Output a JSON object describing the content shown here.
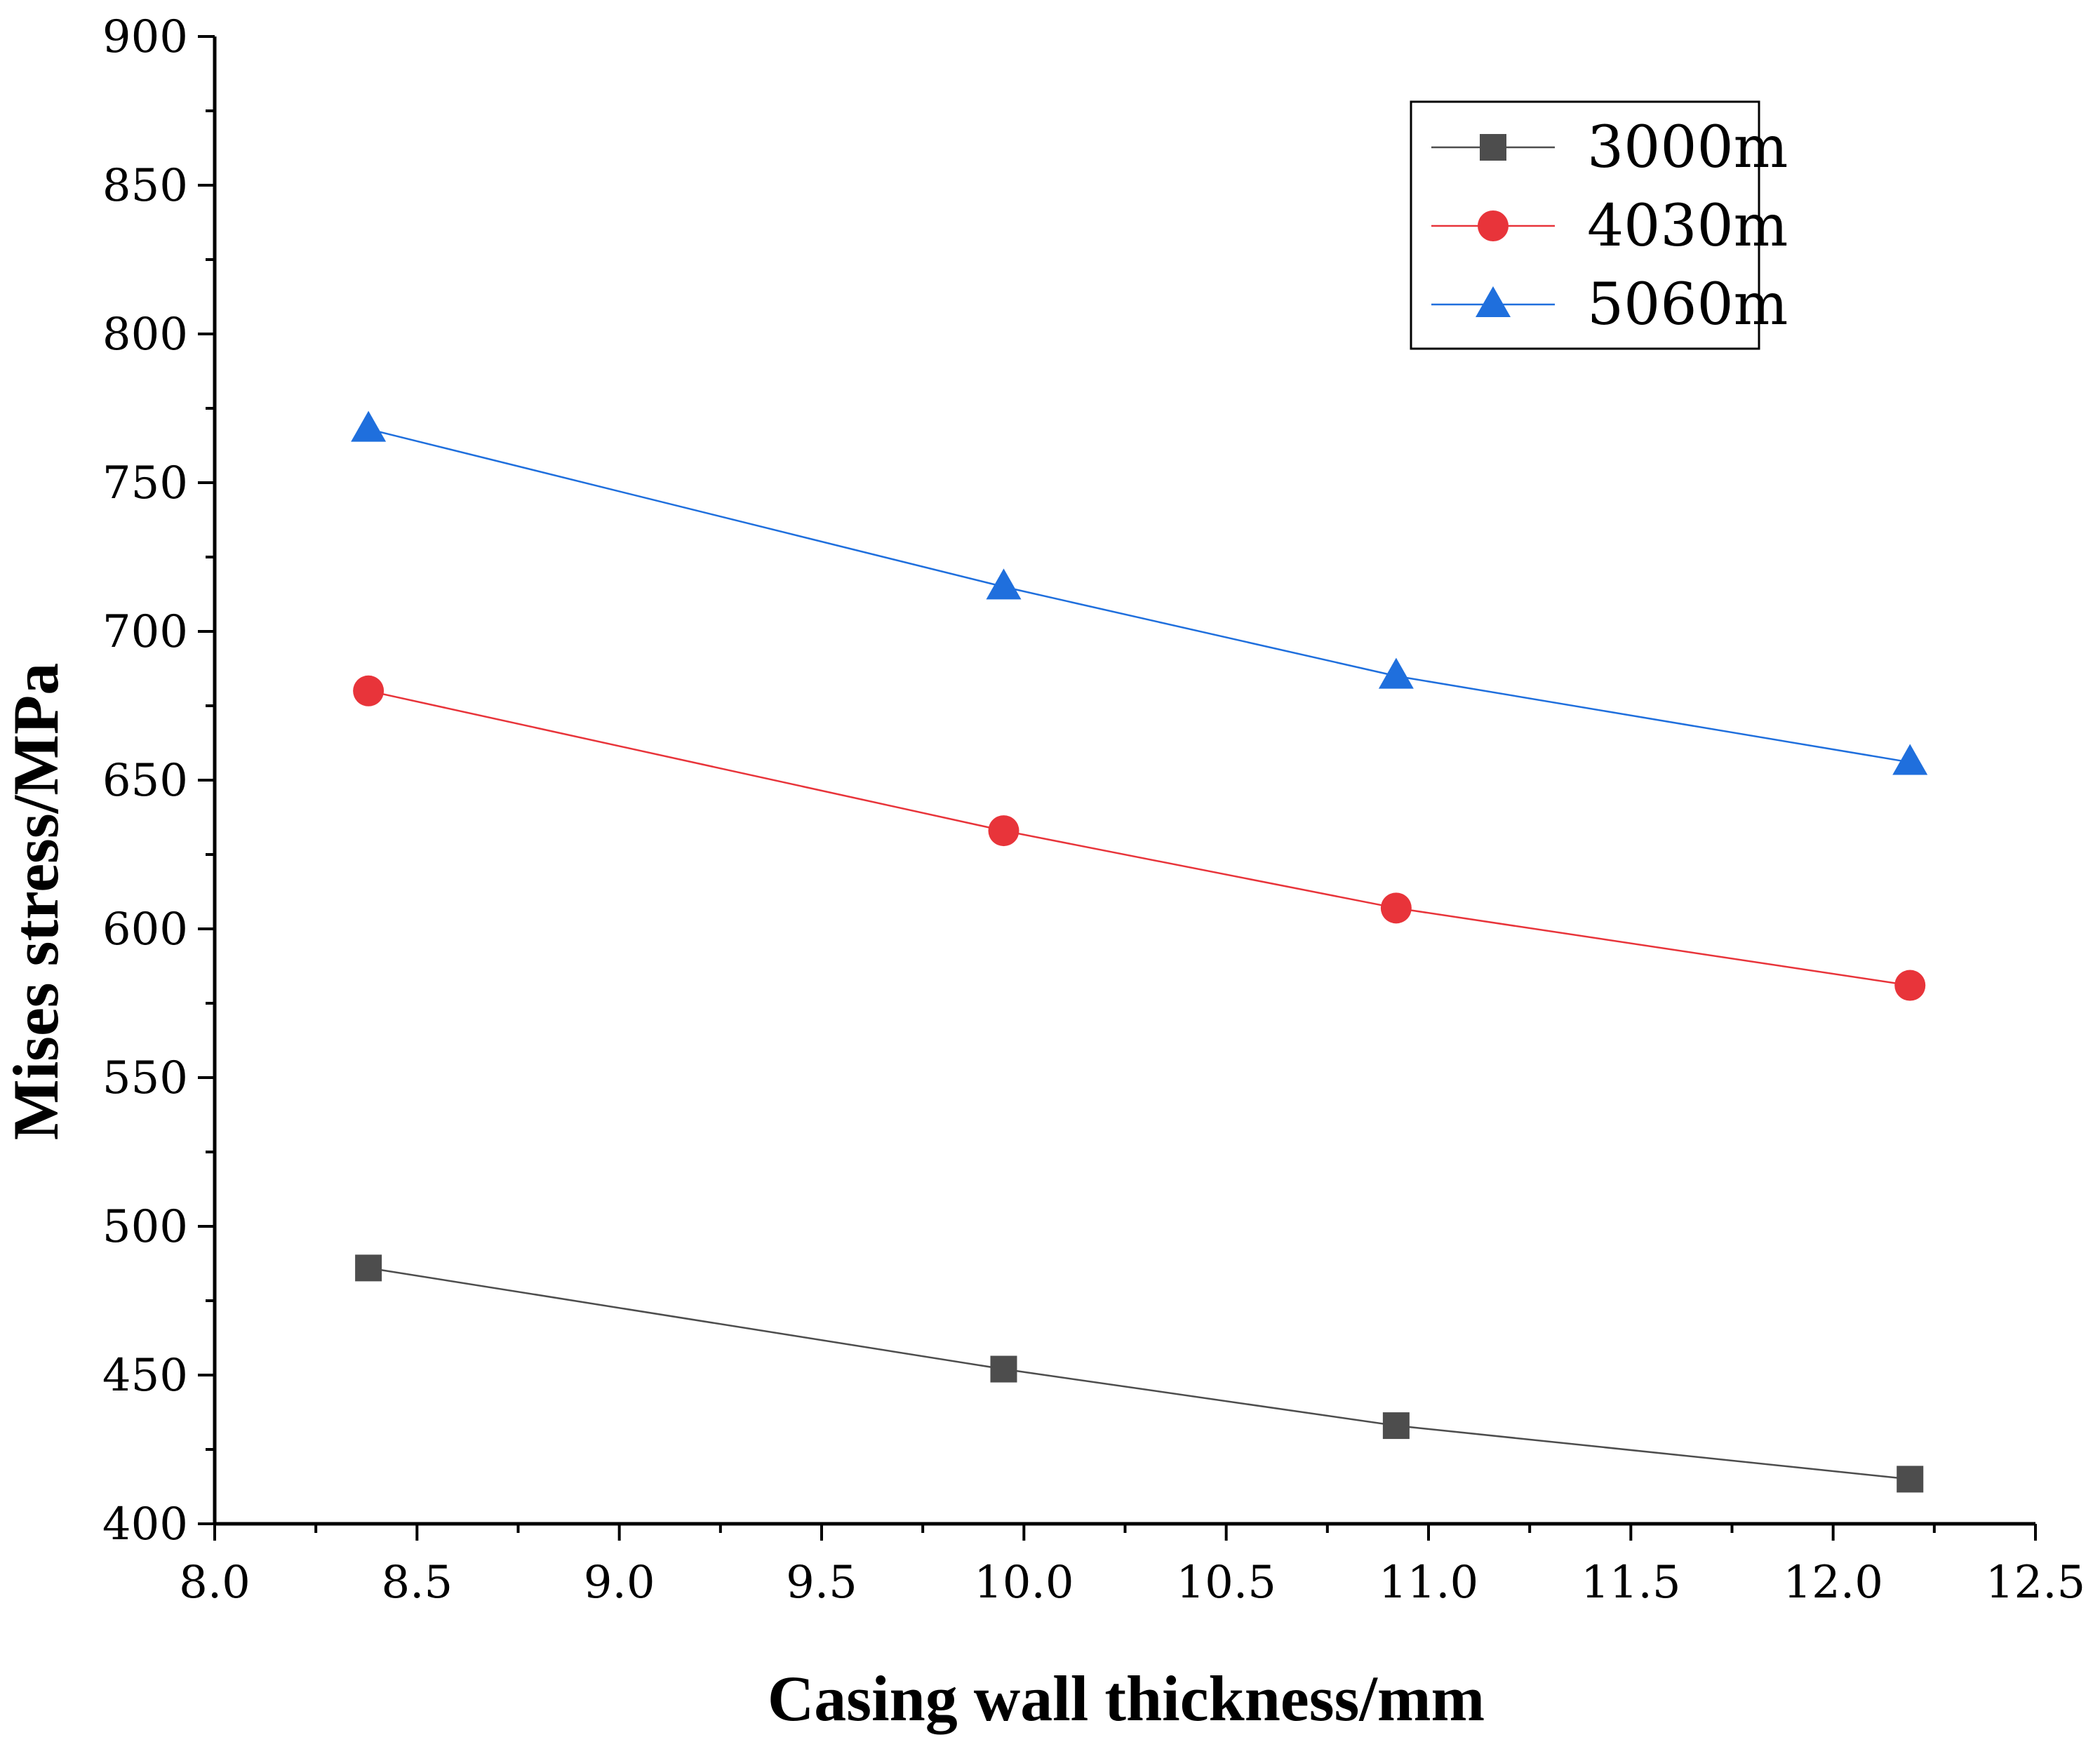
{
  "chart_data": {
    "type": "line",
    "xlabel": "Casing wall thickness/mm",
    "ylabel": "Mises stress/MPa",
    "xlim": [
      8.0,
      12.5
    ],
    "ylim": [
      400,
      900
    ],
    "x_major_step": 0.5,
    "y_major_step": 50,
    "x_tick_labels": [
      "8.0",
      "8.5",
      "9.0",
      "9.5",
      "10.0",
      "10.5",
      "11.0",
      "11.5",
      "12.0",
      "12.5"
    ],
    "y_tick_labels": [
      "400",
      "450",
      "500",
      "550",
      "600",
      "650",
      "700",
      "750",
      "800",
      "850",
      "900"
    ],
    "grid": false,
    "legend_position": "top-right",
    "x": [
      8.38,
      9.95,
      10.92,
      12.19
    ],
    "series": [
      {
        "name": "3000m",
        "values": [
          486,
          452,
          433,
          415
        ],
        "color": "#4d4d4d",
        "marker": "square"
      },
      {
        "name": "4030m",
        "values": [
          680,
          633,
          607,
          581
        ],
        "color": "#e8343a",
        "marker": "circle"
      },
      {
        "name": "5060m",
        "values": [
          768,
          715,
          685,
          656
        ],
        "color": "#1f6fdd",
        "marker": "triangle"
      }
    ]
  }
}
